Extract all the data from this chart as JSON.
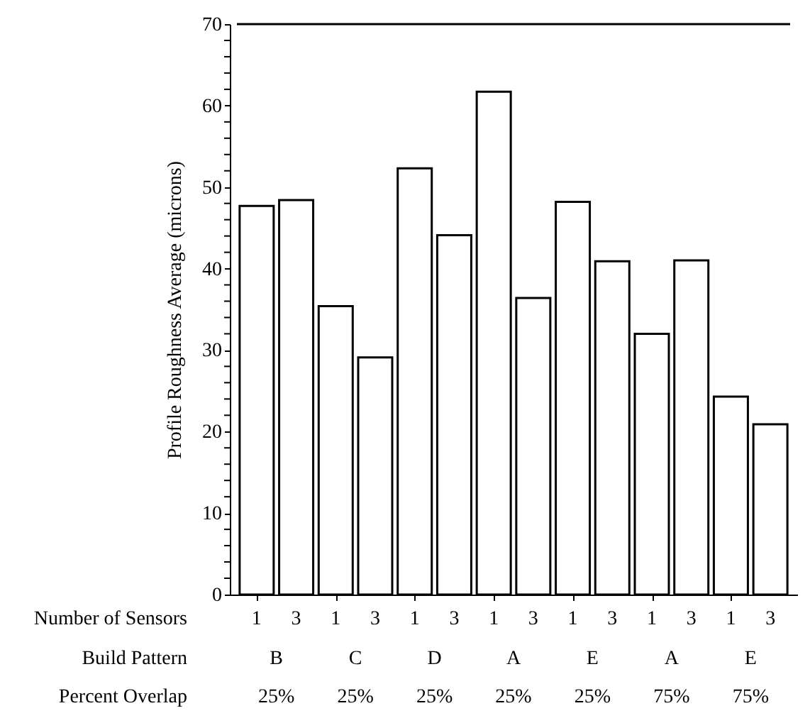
{
  "chart_data": {
    "type": "bar",
    "categories": [
      "1",
      "3",
      "1",
      "3",
      "1",
      "3",
      "1",
      "3",
      "1",
      "3",
      "1",
      "3",
      "1",
      "3"
    ],
    "values": [
      47.7,
      48.4,
      35.4,
      29.1,
      52.3,
      44.1,
      61.7,
      36.4,
      48.2,
      40.9,
      32.0,
      41.0,
      24.3,
      20.9
    ],
    "color": "#ffffff",
    "xlabel": "Number of Sensors",
    "ylabel": "Profile Roughness Average (microns)",
    "ylim": [
      0,
      70
    ],
    "yticks": [
      0,
      {
        "value": 2,
        "label": null
      },
      {
        "value": 4,
        "label": null
      },
      {
        "value": 6,
        "label": null
      },
      {
        "value": 8,
        "label": null
      },
      10,
      {
        "value": 12,
        "label": null
      },
      {
        "value": 14,
        "label": null
      },
      {
        "value": 16,
        "label": null
      },
      {
        "value": 18,
        "label": null
      },
      20,
      {
        "value": 22,
        "label": null
      },
      {
        "value": 24,
        "label": null
      },
      {
        "value": 26,
        "label": null
      },
      {
        "value": 28,
        "label": null
      },
      30,
      {
        "value": 32,
        "label": null
      },
      {
        "value": 34,
        "label": null
      },
      {
        "value": 36,
        "label": null
      },
      {
        "value": 38,
        "label": null
      },
      40,
      {
        "value": 42,
        "label": null
      },
      {
        "value": 44,
        "label": null
      },
      {
        "value": 46,
        "label": null
      },
      {
        "value": 48,
        "label": null
      },
      50,
      {
        "value": 52,
        "label": null
      },
      {
        "value": 54,
        "label": null
      },
      {
        "value": 56,
        "label": null
      },
      {
        "value": 58,
        "label": null
      },
      60,
      {
        "value": 62,
        "label": null
      },
      {
        "value": 64,
        "label": null
      },
      {
        "value": 66,
        "label": null
      },
      {
        "value": 68,
        "label": null
      },
      70
    ],
    "annotations": [
      "Build Pattern",
      "Percent Overlap",
      "B",
      "25%",
      "C",
      "25%",
      "D",
      "25%",
      "A",
      "25%",
      "E",
      "25%",
      "A",
      "75%",
      "E",
      "75%"
    ],
    "grid": false
  }
}
